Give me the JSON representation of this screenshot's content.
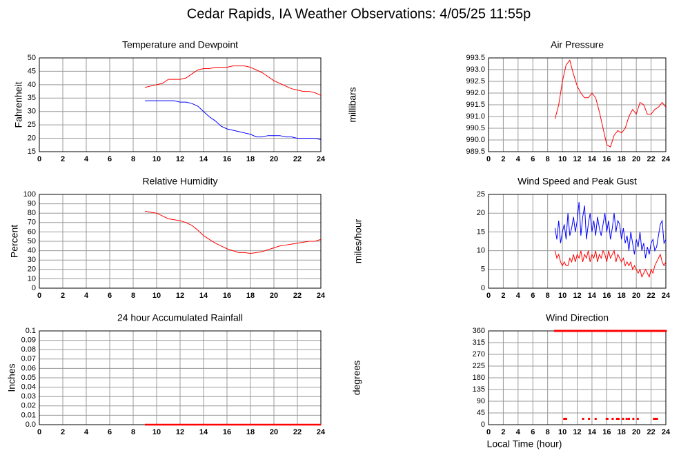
{
  "title": "Cedar Rapids, IA Weather Observations: 4/05/25 11:55p",
  "chart_data": [
    {
      "type": "line",
      "title": "Temperature and Dewpoint",
      "y_label": "Fahrenheit",
      "x": [
        9,
        9.5,
        10,
        10.5,
        11,
        11.5,
        12,
        12.5,
        13,
        13.5,
        14,
        14.5,
        15,
        15.5,
        16,
        16.5,
        17,
        17.5,
        18,
        18.5,
        19,
        19.5,
        20,
        20.5,
        21,
        21.5,
        22,
        22.5,
        23,
        23.5,
        24
      ],
      "series": [
        {
          "color": "#ff0000",
          "values": [
            39,
            39.5,
            40,
            40.5,
            42,
            42,
            42,
            42.5,
            44,
            45.5,
            46,
            46,
            46.5,
            46.5,
            46.5,
            47,
            47,
            47,
            46.5,
            45.5,
            44.5,
            43,
            41.5,
            40.5,
            39.5,
            38.5,
            38,
            37.5,
            37.5,
            37,
            36
          ]
        },
        {
          "color": "#0000ff",
          "values": [
            34,
            34,
            34,
            34,
            34,
            34,
            33.5,
            33.5,
            33,
            32,
            30,
            28,
            26.5,
            24.5,
            23.5,
            23,
            22.5,
            22,
            21.5,
            20.5,
            20.5,
            21,
            21,
            21,
            20.5,
            20.5,
            20,
            20,
            20,
            20,
            19.5
          ]
        }
      ],
      "xlim": [
        0,
        24
      ],
      "xticks": [
        0,
        2,
        4,
        6,
        8,
        10,
        12,
        14,
        16,
        18,
        20,
        22,
        24
      ],
      "ylim": [
        15,
        50
      ],
      "yticks": [
        15,
        20,
        25,
        30,
        35,
        40,
        45,
        50
      ],
      "grid": true
    },
    {
      "type": "line",
      "title": "Air Pressure",
      "y_label": "millibars",
      "x": [
        9,
        9.5,
        10,
        10.5,
        11,
        11.5,
        12,
        12.5,
        13,
        13.5,
        14,
        14.5,
        15,
        15.5,
        16,
        16.5,
        17,
        17.5,
        18,
        18.5,
        19,
        19.5,
        20,
        20.5,
        21,
        21.5,
        22,
        22.5,
        23,
        23.5,
        24
      ],
      "series": [
        {
          "color": "#ff0000",
          "values": [
            990.9,
            991.5,
            992.5,
            993.2,
            993.4,
            992.8,
            992.3,
            992.0,
            991.8,
            991.8,
            992.0,
            991.8,
            991.2,
            990.5,
            989.8,
            989.7,
            990.2,
            990.4,
            990.3,
            990.5,
            991.0,
            991.3,
            991.1,
            991.6,
            991.5,
            991.1,
            991.1,
            991.3,
            991.4,
            991.6,
            991.4
          ]
        }
      ],
      "xlim": [
        0,
        24
      ],
      "xticks": [
        0,
        2,
        4,
        6,
        8,
        10,
        12,
        14,
        16,
        18,
        20,
        22,
        24
      ],
      "ylim": [
        989.5,
        993.5
      ],
      "yticks": [
        989.5,
        {
          "value": 990,
          "label": "990.0"
        },
        990.5,
        {
          "value": 991,
          "label": "991.0"
        },
        991.5,
        {
          "value": 992,
          "label": "992.0"
        },
        992.5,
        {
          "value": 993,
          "label": "993.0"
        },
        993.5
      ],
      "grid": true
    },
    {
      "type": "line",
      "title": "Relative Humidity",
      "y_label": "Percent",
      "x": [
        9,
        9.5,
        10,
        10.5,
        11,
        11.5,
        12,
        12.5,
        13,
        13.5,
        14,
        14.5,
        15,
        15.5,
        16,
        16.5,
        17,
        17.5,
        18,
        18.5,
        19,
        19.5,
        20,
        20.5,
        21,
        21.5,
        22,
        22.5,
        23,
        23.5,
        24
      ],
      "series": [
        {
          "color": "#ff0000",
          "values": [
            82,
            81,
            80,
            77,
            74,
            73,
            72,
            70,
            67,
            62,
            56,
            52,
            48,
            45,
            42,
            40,
            38,
            38,
            37,
            38,
            39,
            41,
            43,
            45,
            46,
            47,
            48,
            49,
            50,
            50,
            52
          ]
        }
      ],
      "xlim": [
        0,
        24
      ],
      "xticks": [
        0,
        2,
        4,
        6,
        8,
        10,
        12,
        14,
        16,
        18,
        20,
        22,
        24
      ],
      "ylim": [
        0,
        100
      ],
      "yticks": [
        0,
        10,
        20,
        30,
        40,
        50,
        60,
        70,
        80,
        90,
        100
      ],
      "grid": true
    },
    {
      "type": "line",
      "title": "Wind Speed and Peak Gust",
      "y_label": "miles/hour",
      "x": [
        9,
        9.25,
        9.5,
        9.75,
        10,
        10.25,
        10.5,
        10.75,
        11,
        11.25,
        11.5,
        11.75,
        12,
        12.25,
        12.5,
        12.75,
        13,
        13.25,
        13.5,
        13.75,
        14,
        14.25,
        14.5,
        14.75,
        15,
        15.25,
        15.5,
        15.75,
        16,
        16.25,
        16.5,
        16.75,
        17,
        17.25,
        17.5,
        17.75,
        18,
        18.25,
        18.5,
        18.75,
        19,
        19.25,
        19.5,
        19.75,
        20,
        20.25,
        20.5,
        20.75,
        21,
        21.25,
        21.5,
        21.75,
        22,
        22.25,
        22.5,
        22.75,
        23,
        23.25,
        23.5,
        23.75,
        24
      ],
      "series": [
        {
          "color": "#0000ff",
          "values": [
            16,
            13,
            18,
            12,
            15,
            17,
            13,
            20,
            14,
            16,
            19,
            15,
            18,
            23,
            14,
            19,
            22,
            13,
            17,
            20,
            15,
            18,
            14,
            19,
            16,
            14,
            17,
            20,
            15,
            18,
            13,
            16,
            20,
            15,
            18,
            17,
            13,
            16,
            12,
            14,
            10,
            15,
            12,
            9,
            13,
            11,
            15,
            10,
            12,
            8,
            11,
            9,
            12,
            13,
            10,
            11,
            14,
            17,
            18,
            12,
            13
          ]
        },
        {
          "color": "#ff0000",
          "values": [
            10,
            8,
            9,
            7,
            6,
            7,
            6,
            6,
            8,
            7,
            9,
            7,
            9,
            8,
            10,
            7,
            9,
            8,
            10,
            7,
            9,
            8,
            10,
            7,
            9,
            8,
            10,
            9,
            7,
            10,
            8,
            9,
            10,
            7,
            9,
            8,
            7,
            8,
            6,
            7,
            6,
            7,
            5,
            6,
            5,
            4,
            5,
            3,
            4,
            5,
            4,
            3,
            5,
            4,
            6,
            7,
            8,
            9,
            7,
            6,
            7
          ]
        }
      ],
      "xlim": [
        0,
        24
      ],
      "xticks": [
        0,
        2,
        4,
        6,
        8,
        10,
        12,
        14,
        16,
        18,
        20,
        22,
        24
      ],
      "ylim": [
        0,
        25
      ],
      "yticks": [
        0,
        5,
        10,
        15,
        20,
        25
      ],
      "grid": true
    },
    {
      "type": "line",
      "title": "24 hour Accumulated Rainfall",
      "y_label": "Inches",
      "x": [
        9,
        24
      ],
      "series": [
        {
          "color": "#ff0000",
          "values": [
            0,
            0
          ]
        }
      ],
      "xlim": [
        0,
        24
      ],
      "xticks": [
        0,
        2,
        4,
        6,
        8,
        10,
        12,
        14,
        16,
        18,
        20,
        22,
        24
      ],
      "ylim": [
        0,
        0.1
      ],
      "yticks": [
        {
          "value": 0,
          "label": "0.0"
        },
        0.01,
        0.02,
        0.03,
        0.04,
        0.05,
        0.06,
        0.07,
        0.08,
        0.09,
        0.1
      ],
      "grid": true
    },
    {
      "type": "scatter",
      "title": "Wind Direction",
      "y_label": "degrees",
      "x_label": "Local Time (hour)",
      "color": "#ff0000",
      "x": [
        9,
        9.25,
        9.5,
        9.75,
        10,
        10.25,
        10.5,
        10.75,
        11,
        11.25,
        11.5,
        11.75,
        12,
        12.25,
        12.5,
        12.75,
        13,
        13.25,
        13.5,
        13.75,
        14,
        14.25,
        14.5,
        14.75,
        15,
        15.25,
        15.5,
        15.75,
        16,
        16.25,
        16.5,
        16.75,
        17,
        17.25,
        17.5,
        17.75,
        18,
        18.25,
        18.5,
        18.75,
        19,
        19.25,
        19.5,
        19.75,
        20,
        20.25,
        20.5,
        20.75,
        21,
        21.25,
        21.5,
        21.75,
        22,
        22.25,
        22.5,
        22.75,
        23,
        23.25,
        23.5,
        23.75,
        24,
        10.25,
        10.35,
        10.5,
        12.8,
        13.6,
        14.5,
        16,
        16.1,
        16.8,
        17.4,
        17.6,
        18.2,
        18.7,
        19,
        19.6,
        20.2,
        22.4,
        22.6,
        22.8
      ],
      "values": [
        360,
        360,
        360,
        360,
        360,
        360,
        360,
        360,
        360,
        360,
        360,
        360,
        360,
        360,
        360,
        360,
        360,
        360,
        360,
        360,
        360,
        360,
        360,
        360,
        360,
        360,
        360,
        360,
        360,
        360,
        360,
        360,
        360,
        360,
        360,
        360,
        360,
        360,
        360,
        360,
        360,
        360,
        360,
        360,
        360,
        360,
        360,
        360,
        360,
        360,
        360,
        360,
        360,
        360,
        360,
        360,
        360,
        360,
        360,
        360,
        360,
        22.5,
        22.5,
        22.5,
        22.5,
        22.5,
        22.5,
        22.5,
        22.5,
        22.5,
        22.5,
        22.5,
        22.5,
        22.5,
        22.5,
        22.5,
        22.5,
        22.5,
        22.5,
        22.5
      ],
      "xlim": [
        0,
        24
      ],
      "xticks": [
        0,
        2,
        4,
        6,
        8,
        10,
        12,
        14,
        16,
        18,
        20,
        22,
        24
      ],
      "ylim": [
        0,
        360
      ],
      "yticks": [
        0,
        45,
        90,
        135,
        180,
        225,
        270,
        315,
        360
      ],
      "grid": true
    }
  ]
}
